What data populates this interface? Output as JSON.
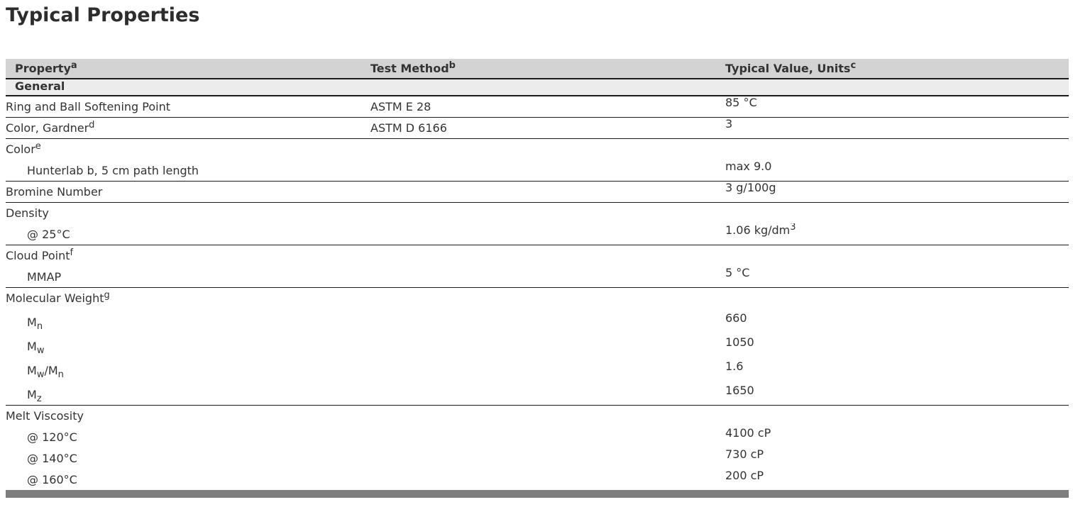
{
  "title": "Typical Properties",
  "table": {
    "headers": [
      "Property^{a}",
      "Test Method^{b}",
      "Typical Value, Units^{c}"
    ],
    "section_label": "General",
    "groups": [
      {
        "rows": [
          {
            "property": "Ring and Ball Softening Point",
            "method": "ASTM E 28",
            "value": "85 °C"
          }
        ]
      },
      {
        "rows": [
          {
            "property": "Color, Gardner^{d}",
            "method": "ASTM D 6166",
            "value": "3"
          }
        ]
      },
      {
        "rows": [
          {
            "property": "Color^{e}"
          },
          {
            "property": "Hunterlab b, 5 cm path length",
            "indent": true,
            "value": "max 9.0"
          }
        ]
      },
      {
        "rows": [
          {
            "property": "Bromine Number",
            "value": "3 g/100g"
          }
        ]
      },
      {
        "rows": [
          {
            "property": "Density"
          },
          {
            "property": "@ 25°C",
            "indent": true,
            "value": "1.06 kg/dm^{3}"
          }
        ]
      },
      {
        "rows": [
          {
            "property": "Cloud Point^{f}"
          },
          {
            "property": "MMAP",
            "indent": true,
            "value": "5 °C"
          }
        ]
      },
      {
        "rows": [
          {
            "property": "Molecular Weight^{g}"
          },
          {
            "property": "M_{n}",
            "indent": true,
            "value": "660"
          },
          {
            "property": "M_{w}",
            "indent": true,
            "value": "1050"
          },
          {
            "property": "M_{w}/M_{n}",
            "indent": true,
            "value": "1.6"
          },
          {
            "property": "M_{z}",
            "indent": true,
            "value": "1650"
          }
        ]
      },
      {
        "rows": [
          {
            "property": "Melt Viscosity"
          },
          {
            "property": "@ 120°C",
            "indent": true,
            "value": "4100 cP"
          },
          {
            "property": "@ 140°C",
            "indent": true,
            "value": "730 cP"
          },
          {
            "property": "@ 160°C",
            "indent": true,
            "value": "200 cP"
          }
        ]
      }
    ]
  },
  "colors": {
    "header_bg": "#d3d3d3",
    "section_bg": "#ececec",
    "text": "#333333",
    "border": "#1a1a1a",
    "bottom_bar": "#7e7e7e"
  }
}
